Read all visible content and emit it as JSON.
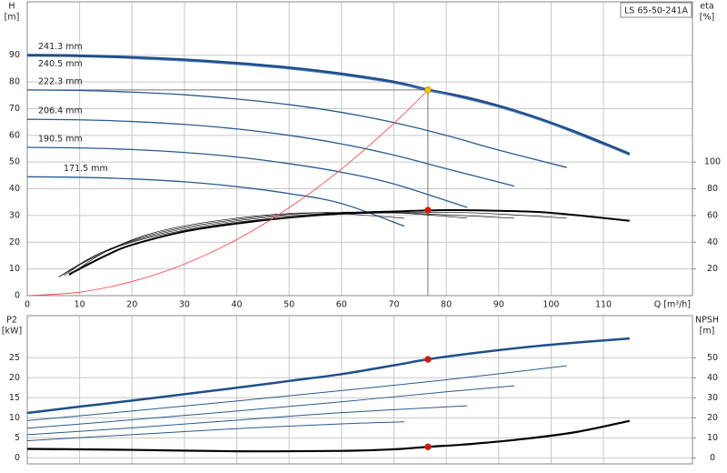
{
  "chart_data": [
    {
      "type": "line",
      "title": "LS 65-50-241A",
      "ylabel": "H",
      "yunit": "[m]",
      "y2label": "eta",
      "y2unit": "[%]",
      "xlabel": "Q [m³/h]",
      "xlim": [
        0,
        127
      ],
      "xticks": [
        0,
        10,
        20,
        30,
        40,
        50,
        60,
        70,
        80,
        90,
        100,
        110
      ],
      "ylim": [
        0,
        110
      ],
      "yticks": [
        0,
        10,
        20,
        30,
        40,
        50,
        60,
        70,
        80,
        90
      ],
      "y2lim": [
        0,
        220
      ],
      "y2ticks": [
        20,
        40,
        60,
        80,
        100
      ],
      "grid": true,
      "series": [
        {
          "name": "241.3 mm",
          "color": "#1f4e8c",
          "width": 3,
          "x": [
            0,
            10,
            20,
            30,
            40,
            50,
            60,
            70,
            76.5,
            85,
            95,
            105,
            115
          ],
          "values": [
            90,
            89.8,
            89.2,
            88.3,
            87,
            85.3,
            83,
            80,
            77,
            73.6,
            68,
            61,
            53
          ]
        },
        {
          "name": "240.5 mm",
          "color": "#5b86c0",
          "width": 1,
          "x": [
            20,
            30,
            40,
            50,
            60,
            70,
            80,
            90,
            100,
            110,
            115
          ],
          "values": [
            88.7,
            87.8,
            86.5,
            84.8,
            82.5,
            79.5,
            75.3,
            70.5,
            64.2,
            56.5,
            52.5
          ]
        },
        {
          "name": "222.3 mm",
          "color": "#2b5a8f",
          "width": 1.3,
          "x": [
            0,
            10,
            20,
            30,
            40,
            50,
            60,
            70,
            80,
            90,
            103
          ],
          "values": [
            77,
            76.8,
            76.2,
            75.2,
            73.6,
            71.5,
            68.6,
            64.8,
            60,
            54.5,
            48
          ]
        },
        {
          "name": "206.4 mm",
          "color": "#2b5a8f",
          "width": 1.3,
          "x": [
            0,
            10,
            20,
            30,
            40,
            50,
            60,
            70,
            80,
            93
          ],
          "values": [
            66,
            65.8,
            65.2,
            64.1,
            62.4,
            60,
            56.8,
            52.6,
            47.5,
            41
          ]
        },
        {
          "name": "190.5 mm",
          "color": "#2b5a8f",
          "width": 1.3,
          "x": [
            0,
            10,
            20,
            30,
            40,
            50,
            60,
            70,
            84
          ],
          "values": [
            55.5,
            55.3,
            54.7,
            53.6,
            51.9,
            49.4,
            46.2,
            41.8,
            33
          ]
        },
        {
          "name": "171.5 mm",
          "color": "#2b5a8f",
          "width": 1.3,
          "x": [
            0,
            10,
            20,
            30,
            40,
            50,
            60,
            72
          ],
          "values": [
            44.5,
            44.3,
            43.7,
            42.6,
            40.8,
            38.2,
            34.5,
            26
          ]
        },
        {
          "axis": "y2",
          "color": "#000000",
          "width": 2,
          "x": [
            8,
            15,
            20,
            30,
            40,
            50,
            60,
            70,
            80,
            90,
            100,
            115
          ],
          "values": [
            16,
            30,
            38,
            48,
            54,
            58.5,
            61.5,
            63,
            64,
            63.5,
            62,
            56
          ]
        },
        {
          "axis": "y2",
          "color": "#000000",
          "width": 0.6,
          "x": [
            6,
            15,
            25,
            40,
            55,
            70,
            85,
            103
          ],
          "values": [
            14,
            33,
            45,
            55,
            60,
            62,
            62,
            58
          ]
        },
        {
          "axis": "y2",
          "color": "#000000",
          "width": 0.6,
          "x": [
            6,
            14,
            25,
            40,
            55,
            70,
            93
          ],
          "values": [
            14,
            32,
            46,
            56,
            61,
            62,
            58
          ]
        },
        {
          "axis": "y2",
          "color": "#000000",
          "width": 0.6,
          "x": [
            7,
            14,
            25,
            40,
            55,
            70,
            84
          ],
          "values": [
            15,
            32,
            47,
            57,
            62,
            62,
            58
          ]
        },
        {
          "axis": "y2",
          "color": "#000000",
          "width": 0.6,
          "x": [
            8,
            15,
            25,
            40,
            55,
            72
          ],
          "values": [
            15,
            33,
            48,
            58,
            62,
            58
          ]
        },
        {
          "color": "#ff3b3b",
          "width": 0.8,
          "x": [
            0,
            10,
            20,
            30,
            40,
            50,
            60,
            70,
            76.5
          ],
          "values": [
            0,
            1.3,
            5.3,
            11.8,
            21,
            32.9,
            47.4,
            64.5,
            77
          ]
        }
      ],
      "points": [
        {
          "x": 76.5,
          "y": 77,
          "color": "#f5c400"
        },
        {
          "x": 76.5,
          "y": 64,
          "axis": "y2",
          "color": "#e01010"
        }
      ]
    },
    {
      "type": "line",
      "ylabel": "P2",
      "yunit": "[kW]",
      "y2label": "NPSH",
      "y2unit": "[m]",
      "xlim": [
        0,
        127
      ],
      "ylim": [
        -1.5,
        35.5
      ],
      "yticks": [
        0,
        5,
        10,
        15,
        20,
        25
      ],
      "y2lim": [
        -3,
        71
      ],
      "y2ticks": [
        0,
        10,
        20,
        30,
        40,
        50
      ],
      "grid": true,
      "series": [
        {
          "color": "#1f4e8c",
          "width": 2.5,
          "x": [
            0,
            10,
            20,
            30,
            40,
            50,
            60,
            70,
            76.5,
            85,
            95,
            105,
            115
          ],
          "values": [
            11.2,
            12.8,
            14.3,
            15.9,
            17.5,
            19.2,
            20.9,
            23.1,
            24.6,
            26.1,
            27.6,
            28.8,
            29.8
          ]
        },
        {
          "color": "#2b5a8f",
          "width": 1,
          "x": [
            0,
            20,
            40,
            60,
            80,
            103
          ],
          "values": [
            9.3,
            11.7,
            14.2,
            16.8,
            19.5,
            23
          ]
        },
        {
          "color": "#2b5a8f",
          "width": 1,
          "x": [
            0,
            20,
            40,
            60,
            80,
            93
          ],
          "values": [
            7.4,
            9.5,
            11.7,
            14,
            16.5,
            18
          ]
        },
        {
          "color": "#2b5a8f",
          "width": 1,
          "x": [
            0,
            20,
            40,
            60,
            84
          ],
          "values": [
            5.8,
            7.5,
            9.4,
            11.3,
            13
          ]
        },
        {
          "color": "#2b5a8f",
          "width": 1,
          "x": [
            0,
            20,
            40,
            60,
            72
          ],
          "values": [
            4.3,
            5.8,
            7.3,
            8.5,
            9
          ]
        },
        {
          "axis": "y2",
          "color": "#000000",
          "width": 2.2,
          "x": [
            0,
            20,
            40,
            60,
            70,
            76.5,
            85,
            95,
            105,
            115
          ],
          "values": [
            4.5,
            4,
            3.3,
            3.5,
            4.3,
            5.5,
            7,
            9.5,
            13,
            18.5
          ]
        }
      ],
      "points": [
        {
          "x": 76.5,
          "y": 24.6,
          "color": "#e01010"
        },
        {
          "x": 76.5,
          "y": 5.5,
          "axis": "y2",
          "color": "#e01010"
        }
      ]
    }
  ]
}
